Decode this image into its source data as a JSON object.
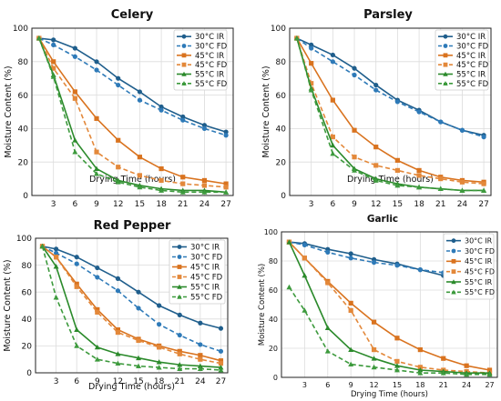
{
  "chart_data": [
    {
      "type": "line",
      "title": "Celery",
      "xlabel": "Drying Time (hours)",
      "ylabel": "Moisture Content (%)",
      "xticks": [
        3,
        6,
        9,
        12,
        15,
        18,
        21,
        24,
        27
      ],
      "yticks": [
        0,
        20,
        40,
        60,
        80,
        100
      ],
      "xlim": [
        0,
        28
      ],
      "ylim": [
        0,
        100
      ],
      "grid": true,
      "legend": "top-right",
      "series": [
        {
          "name": "30°C IR",
          "x": [
            1,
            3,
            6,
            9,
            12,
            15,
            18,
            21,
            24,
            27
          ],
          "values": [
            94,
            93,
            88,
            80,
            70,
            62,
            53,
            47,
            42,
            38
          ]
        },
        {
          "name": "30°C FD",
          "x": [
            1,
            3,
            6,
            9,
            12,
            15,
            18,
            21,
            24,
            27
          ],
          "values": [
            94,
            90,
            83,
            75,
            66,
            57,
            51,
            45,
            40,
            36
          ]
        },
        {
          "name": "45°C IR",
          "x": [
            1,
            3,
            6,
            9,
            12,
            15,
            18,
            21,
            24,
            27
          ],
          "values": [
            94,
            80,
            62,
            46,
            33,
            23,
            16,
            11,
            9,
            7
          ]
        },
        {
          "name": "45°C FD",
          "x": [
            1,
            3,
            6,
            9,
            12,
            15,
            18,
            21,
            24,
            27
          ],
          "values": [
            94,
            76,
            58,
            26,
            17,
            12,
            9,
            7,
            6,
            5
          ]
        },
        {
          "name": "55°C IR",
          "x": [
            1,
            3,
            6,
            9,
            12,
            15,
            18,
            21,
            24,
            27
          ],
          "values": [
            94,
            72,
            33,
            16,
            9,
            6,
            4,
            3,
            3,
            2
          ]
        },
        {
          "name": "55°C FD",
          "x": [
            1,
            3,
            6,
            9,
            12,
            15,
            18,
            21,
            24,
            27
          ],
          "values": [
            94,
            71,
            26,
            13,
            8,
            5,
            3,
            2,
            2,
            2
          ]
        }
      ]
    },
    {
      "type": "line",
      "title": "Parsley",
      "xlabel": "Drying Time (hours)",
      "ylabel": "Moisture Content (%)",
      "xticks": [
        3,
        6,
        9,
        12,
        15,
        18,
        21,
        24,
        27
      ],
      "yticks": [
        0,
        20,
        40,
        60,
        80,
        100
      ],
      "xlim": [
        0,
        28
      ],
      "ylim": [
        0,
        100
      ],
      "grid": true,
      "legend": "top-right",
      "series": [
        {
          "name": "30°C IR",
          "x": [
            1,
            3,
            6,
            9,
            12,
            15,
            18,
            21,
            24,
            27
          ],
          "values": [
            94,
            90,
            84,
            76,
            66,
            57,
            51,
            44,
            39,
            36
          ]
        },
        {
          "name": "30°C FD",
          "x": [
            1,
            3,
            6,
            9,
            12,
            15,
            18,
            21,
            24,
            27
          ],
          "values": [
            94,
            88,
            80,
            72,
            63,
            56,
            50,
            44,
            39,
            35
          ]
        },
        {
          "name": "45°C IR",
          "x": [
            1,
            3,
            6,
            9,
            12,
            15,
            18,
            21,
            24,
            27
          ],
          "values": [
            94,
            79,
            57,
            39,
            29,
            21,
            15,
            11,
            9,
            8
          ]
        },
        {
          "name": "45°C FD",
          "x": [
            1,
            3,
            6,
            9,
            12,
            15,
            18,
            21,
            24,
            27
          ],
          "values": [
            94,
            67,
            35,
            23,
            18,
            15,
            12,
            10,
            8,
            7
          ]
        },
        {
          "name": "55°C IR",
          "x": [
            1,
            3,
            6,
            9,
            12,
            15,
            18,
            21,
            24,
            27
          ],
          "values": [
            94,
            64,
            30,
            16,
            10,
            7,
            5,
            4,
            3,
            3
          ]
        },
        {
          "name": "55°C FD",
          "x": [
            1,
            3,
            6,
            9,
            12,
            15,
            18,
            21,
            24,
            27
          ],
          "values": [
            94,
            63,
            25,
            15,
            9,
            6,
            5,
            4,
            3,
            3
          ]
        }
      ]
    },
    {
      "type": "line",
      "title": "Red Pepper",
      "xlabel": "Drying Time (hours)",
      "ylabel": "Moisture Content (%)",
      "xticks": [
        3,
        6,
        9,
        12,
        15,
        18,
        21,
        24,
        27
      ],
      "yticks": [
        0,
        20,
        40,
        60,
        80,
        100
      ],
      "xlim": [
        0,
        28
      ],
      "ylim": [
        0,
        100
      ],
      "grid": true,
      "legend": "top-right",
      "series": [
        {
          "name": "30°C IR",
          "x": [
            1,
            3,
            6,
            9,
            12,
            15,
            18,
            21,
            24,
            27
          ],
          "values": [
            94,
            92,
            86,
            78,
            70,
            60,
            50,
            43,
            37,
            33
          ]
        },
        {
          "name": "30°C FD",
          "x": [
            1,
            3,
            6,
            9,
            12,
            15,
            18,
            21,
            24,
            27
          ],
          "values": [
            94,
            89,
            81,
            71,
            61,
            48,
            36,
            28,
            21,
            16
          ]
        },
        {
          "name": "45°C IR",
          "x": [
            1,
            3,
            6,
            9,
            12,
            15,
            18,
            21,
            24,
            27
          ],
          "values": [
            94,
            86,
            66,
            47,
            32,
            25,
            20,
            16,
            13,
            9
          ]
        },
        {
          "name": "45°C FD",
          "x": [
            1,
            3,
            6,
            9,
            12,
            15,
            18,
            21,
            24,
            27
          ],
          "values": [
            94,
            86,
            64,
            45,
            30,
            24,
            19,
            14,
            10,
            7
          ]
        },
        {
          "name": "55°C IR",
          "x": [
            1,
            3,
            6,
            9,
            12,
            15,
            18,
            21,
            24,
            27
          ],
          "values": [
            94,
            79,
            32,
            19,
            14,
            11,
            8,
            6,
            5,
            4
          ]
        },
        {
          "name": "55°C FD",
          "x": [
            1,
            3,
            6,
            9,
            12,
            15,
            18,
            21,
            24,
            27
          ],
          "values": [
            94,
            56,
            20,
            10,
            7,
            5,
            4,
            3,
            3,
            2
          ]
        }
      ]
    },
    {
      "type": "line",
      "title": "Garlic",
      "xlabel": "Drying Time (hours)",
      "ylabel": "Moisture Content (%)",
      "xticks": [
        3,
        6,
        9,
        12,
        15,
        18,
        21,
        24,
        27
      ],
      "yticks": [
        0,
        20,
        40,
        60,
        80,
        100
      ],
      "xlim": [
        0,
        28
      ],
      "ylim": [
        0,
        100
      ],
      "grid": true,
      "legend": "top-right",
      "series": [
        {
          "name": "30°C IR",
          "x": [
            1,
            3,
            6,
            9,
            12,
            15,
            18,
            21,
            24,
            27
          ],
          "values": [
            93,
            92,
            88,
            85,
            81,
            78,
            74,
            70,
            66,
            63
          ]
        },
        {
          "name": "30°C FD",
          "x": [
            1,
            3,
            6,
            9,
            12,
            15,
            18,
            21,
            24,
            27
          ],
          "values": [
            93,
            91,
            86,
            82,
            79,
            77,
            74,
            72,
            69,
            66
          ]
        },
        {
          "name": "45°C IR",
          "x": [
            1,
            3,
            6,
            9,
            12,
            15,
            18,
            21,
            24,
            27
          ],
          "values": [
            93,
            82,
            66,
            51,
            38,
            27,
            19,
            13,
            8,
            5
          ]
        },
        {
          "name": "45°C FD",
          "x": [
            1,
            3,
            6,
            9,
            12,
            15,
            18,
            21,
            24,
            27
          ],
          "values": [
            93,
            82,
            65,
            46,
            19,
            11,
            7,
            5,
            4,
            3
          ]
        },
        {
          "name": "55°C IR",
          "x": [
            1,
            3,
            6,
            9,
            12,
            15,
            18,
            21,
            24,
            27
          ],
          "values": [
            93,
            70,
            34,
            19,
            13,
            8,
            5,
            4,
            3,
            3
          ]
        },
        {
          "name": "55°C FD",
          "x": [
            1,
            3,
            6,
            9,
            12,
            15,
            18,
            21,
            24,
            27
          ],
          "values": [
            62,
            46,
            18,
            9,
            7,
            5,
            3,
            3,
            2,
            2
          ]
        }
      ]
    }
  ],
  "style": {
    "series_colors": [
      "#1f5e8c",
      "#2e7ab8",
      "#d9731f",
      "#e3883a",
      "#2b8a2b",
      "#3d9a3d"
    ],
    "series_dashed": [
      false,
      true,
      false,
      true,
      false,
      true
    ],
    "series_markers": [
      "circle",
      "circle",
      "square",
      "square",
      "triangle",
      "triangle"
    ],
    "grid_color": "#dcdcdc",
    "axis_color": "#222222",
    "text_color": "#111111"
  }
}
